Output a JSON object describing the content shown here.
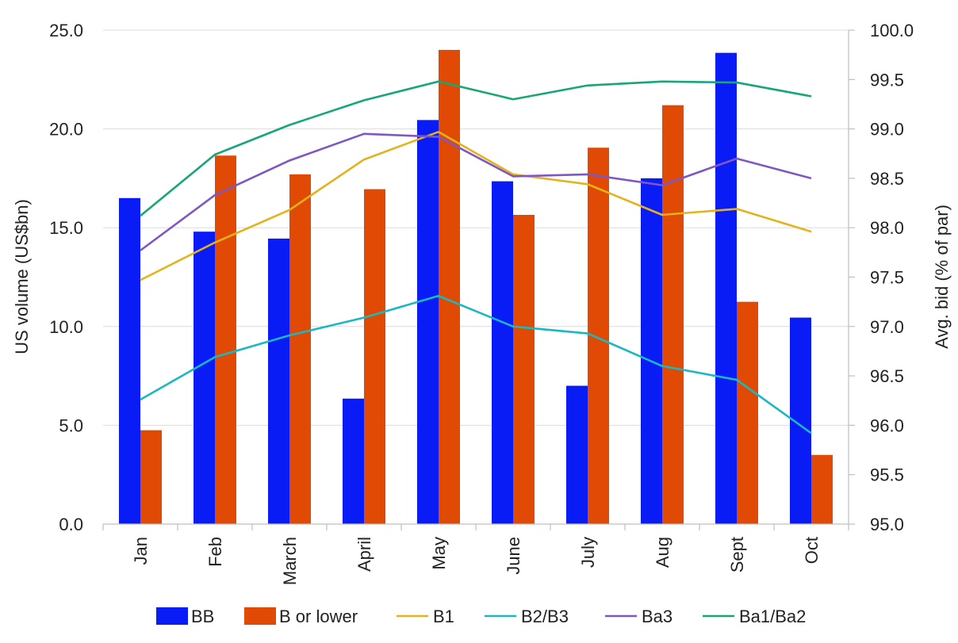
{
  "chart_data": {
    "type": "bar",
    "categories": [
      "Jan",
      "Feb",
      "March",
      "April",
      "May",
      "June",
      "July",
      "Aug",
      "Sept",
      "Oct"
    ],
    "bar_series": [
      {
        "name": "BB",
        "color": "#0a1cf5",
        "values": [
          16.5,
          14.8,
          14.45,
          6.35,
          20.45,
          17.35,
          7.0,
          17.5,
          23.85,
          10.45
        ]
      },
      {
        "name": "B or lower",
        "color": "#e04a04",
        "values": [
          4.75,
          18.65,
          17.7,
          16.95,
          24.0,
          15.65,
          19.05,
          21.2,
          11.25,
          3.5
        ]
      }
    ],
    "line_series": [
      {
        "name": "B1",
        "color": "#e4b21a",
        "values": [
          97.47,
          97.85,
          98.18,
          98.69,
          98.97,
          98.54,
          98.44,
          98.13,
          98.19,
          97.96
        ]
      },
      {
        "name": "B2/B3",
        "color": "#1ab8c0",
        "values": [
          96.26,
          96.69,
          96.91,
          97.09,
          97.31,
          97.0,
          96.93,
          96.6,
          96.46,
          95.92
        ]
      },
      {
        "name": "Ba3",
        "color": "#7e57c2",
        "values": [
          97.77,
          98.33,
          98.68,
          98.95,
          98.92,
          98.52,
          98.54,
          98.43,
          98.7,
          98.5
        ]
      },
      {
        "name": "Ba1/Ba2",
        "color": "#17a57a",
        "values": [
          98.12,
          98.74,
          99.04,
          99.29,
          99.48,
          99.3,
          99.44,
          99.48,
          99.47,
          99.33
        ]
      }
    ],
    "y_left": {
      "label": "US volume (US$bn)",
      "range": [
        0,
        25
      ],
      "ticks": [
        "0.0",
        "5.0",
        "10.0",
        "15.0",
        "20.0",
        "25.0"
      ]
    },
    "y_right": {
      "label": "Avg. bid (% of par)",
      "range": [
        95,
        100
      ],
      "ticks": [
        "95.0",
        "95.5",
        "96.0",
        "96.5",
        "97.0",
        "97.5",
        "98.0",
        "98.5",
        "99.0",
        "99.5",
        "100.0"
      ]
    },
    "grid": true,
    "legend_position": "bottom"
  }
}
